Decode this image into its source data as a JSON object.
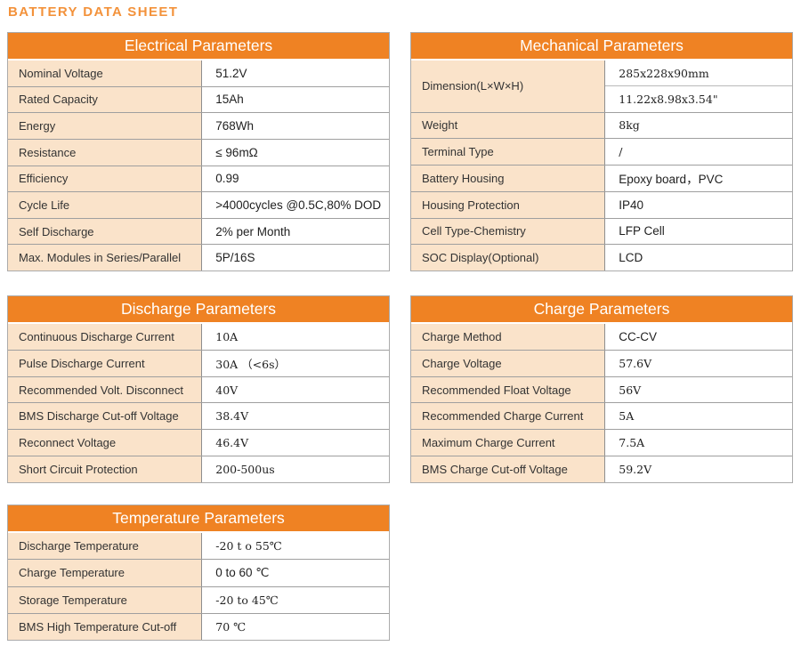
{
  "title": "BATTERY DATA SHEET",
  "colors": {
    "accent_orange": "#EF8223",
    "title_orange": "#F3923B",
    "label_cell_bg": "#FAE3CA",
    "header_text": "#FFFFFF",
    "border_gray": "#9F9F9F"
  },
  "tables": [
    {
      "id": "electrical",
      "title": "Electrical Parameters",
      "rows": [
        {
          "label": "Nominal Voltage",
          "value": "51.2V",
          "serif": false
        },
        {
          "label": "Rated Capacity",
          "value": "15Ah",
          "serif": false
        },
        {
          "label": "Energy",
          "value": "768Wh",
          "serif": false
        },
        {
          "label": "Resistance",
          "value": "≤ 96mΩ",
          "serif": false
        },
        {
          "label": "Efficiency",
          "value": "0.99",
          "serif": false
        },
        {
          "label": "Cycle Life",
          "value": ">4000cycles @0.5C,80% DOD",
          "serif": false
        },
        {
          "label": "Self Discharge",
          "value": "2% per Month",
          "serif": false
        },
        {
          "label": "Max. Modules in Series/Parallel",
          "value": "5P/16S",
          "serif": false
        }
      ]
    },
    {
      "id": "mechanical",
      "title": "Mechanical Parameters",
      "rows": [
        {
          "label": "Dimension(L×W×H)",
          "values": [
            "285x228x90mm",
            "11.22x8.98x3.54\""
          ],
          "serif": true
        },
        {
          "label": "Weight",
          "value": "8kg",
          "serif": true
        },
        {
          "label": "Terminal Type",
          "value": "/",
          "serif": true
        },
        {
          "label": "Battery Housing",
          "value": "Epoxy board，PVC",
          "serif": false
        },
        {
          "label": "Housing Protection",
          "value": "IP40",
          "serif": false
        },
        {
          "label": "Cell Type-Chemistry",
          "value": "LFP Cell",
          "serif": false
        },
        {
          "label": "SOC Display(Optional)",
          "value": "LCD",
          "serif": false
        }
      ]
    },
    {
      "id": "discharge",
      "title": "Discharge Parameters",
      "rows": [
        {
          "label": "Continuous Discharge Current",
          "value": "10A",
          "serif": true
        },
        {
          "label": "Pulse Discharge Current",
          "value": "30A （<6s）",
          "serif": true
        },
        {
          "label": "Recommended Volt. Disconnect",
          "value": "40V",
          "serif": true
        },
        {
          "label": "BMS Discharge Cut-off Voltage",
          "value": "38.4V",
          "serif": true
        },
        {
          "label": "Reconnect Voltage",
          "value": "46.4V",
          "serif": true
        },
        {
          "label": "Short Circuit Protection",
          "value": "200-500us",
          "serif": true
        }
      ]
    },
    {
      "id": "charge",
      "title": "Charge Parameters",
      "rows": [
        {
          "label": "Charge Method",
          "value": "CC-CV",
          "serif": false
        },
        {
          "label": "Charge Voltage",
          "value": "57.6V",
          "serif": true
        },
        {
          "label": "Recommended Float Voltage",
          "value": "56V",
          "serif": true
        },
        {
          "label": "Recommended Charge Current",
          "value": "5A",
          "serif": true
        },
        {
          "label": "Maximum Charge Current",
          "value": "7.5A",
          "serif": true
        },
        {
          "label": "BMS Charge Cut-off Voltage",
          "value": "59.2V",
          "serif": true
        }
      ]
    },
    {
      "id": "temperature",
      "title": "Temperature Parameters",
      "rows": [
        {
          "label": "Discharge Temperature",
          "value": "-20 t o 55℃",
          "serif": true
        },
        {
          "label": "Charge Temperature",
          "value": "0 to 60 ℃",
          "serif": false
        },
        {
          "label": "Storage Temperature",
          "value": "-20 to 45℃",
          "serif": true
        },
        {
          "label": "BMS High Temperature Cut-off",
          "value": "70 ℃",
          "serif": true
        }
      ]
    }
  ]
}
